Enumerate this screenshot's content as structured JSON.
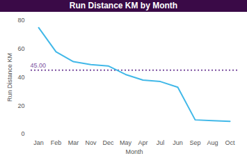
{
  "chart_data": {
    "type": "line",
    "title": "Run Distance KM by Month",
    "x_label": "Month",
    "y_label": "Run Distance KM",
    "categories": [
      "Jan",
      "Feb",
      "Mar",
      "Nov",
      "Dec",
      "May",
      "Apr",
      "Jul",
      "Jun",
      "Sep",
      "Aug",
      "Oct"
    ],
    "values": [
      75,
      58,
      51,
      49,
      48,
      42,
      38,
      37,
      33,
      10,
      9.5,
      9
    ],
    "color": "#41b8e8",
    "ylim": [
      0,
      80
    ],
    "yticks": [
      0,
      20,
      40,
      60,
      80
    ],
    "grid": false,
    "reference_line": {
      "value": 45,
      "label": "45.00",
      "color": "#7b4fa0",
      "line_style": "dotted"
    }
  }
}
